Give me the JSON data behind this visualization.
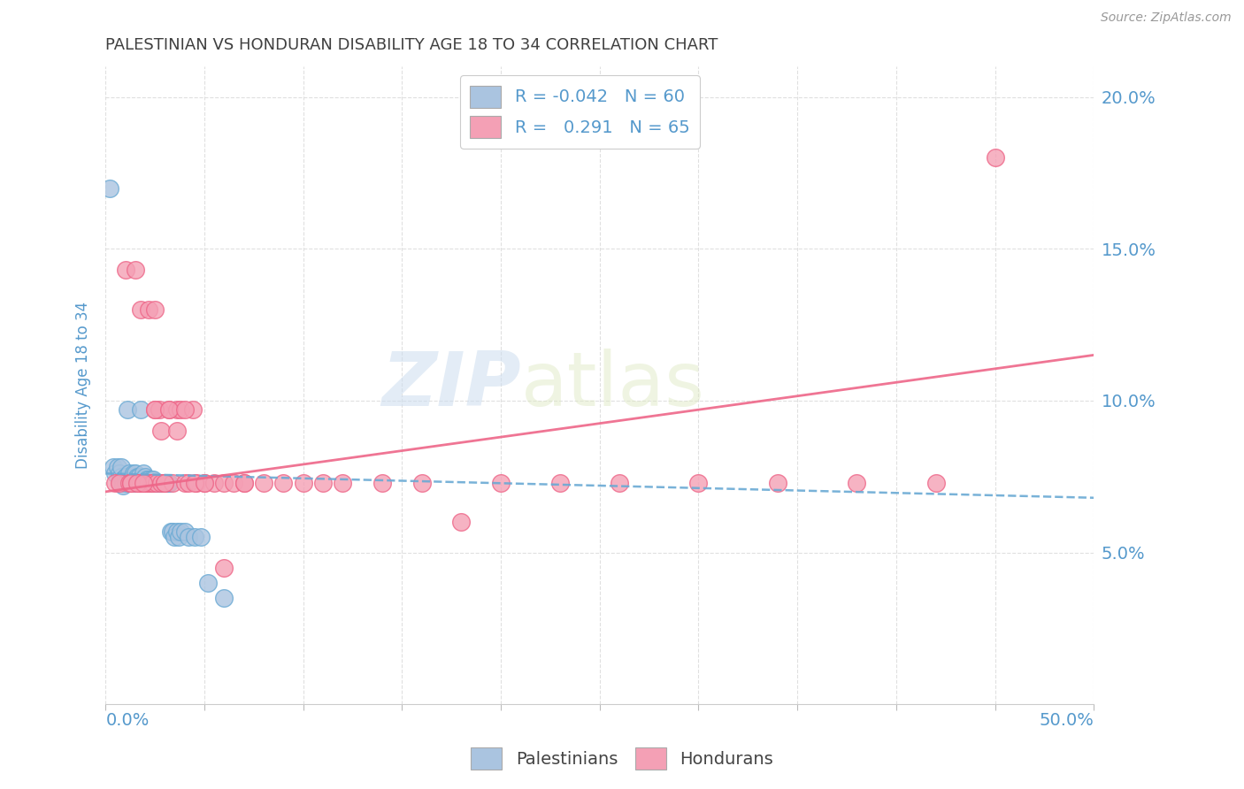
{
  "title": "PALESTINIAN VS HONDURAN DISABILITY AGE 18 TO 34 CORRELATION CHART",
  "source": "Source: ZipAtlas.com",
  "ylabel": "Disability Age 18 to 34",
  "ytick_labels": [
    "5.0%",
    "10.0%",
    "15.0%",
    "20.0%"
  ],
  "ytick_values": [
    0.05,
    0.1,
    0.15,
    0.2
  ],
  "xlim": [
    0.0,
    0.5
  ],
  "ylim": [
    0.0,
    0.21
  ],
  "legend_label1": "Palestinians",
  "legend_label2": "Hondurans",
  "color_blue": "#aac4e0",
  "color_pink": "#f4a0b5",
  "line_blue": "#6aaad4",
  "line_pink": "#ee6688",
  "background_color": "#ffffff",
  "grid_color": "#dddddd",
  "title_color": "#404040",
  "axis_label_color": "#5599cc",
  "watermark1": "ZIP",
  "watermark2": "atlas",
  "pal_x": [
    0.002,
    0.004,
    0.005,
    0.006,
    0.007,
    0.007,
    0.008,
    0.008,
    0.009,
    0.009,
    0.01,
    0.01,
    0.011,
    0.011,
    0.012,
    0.012,
    0.013,
    0.013,
    0.014,
    0.014,
    0.015,
    0.015,
    0.016,
    0.016,
    0.017,
    0.017,
    0.018,
    0.018,
    0.019,
    0.019,
    0.02,
    0.02,
    0.021,
    0.021,
    0.022,
    0.022,
    0.023,
    0.023,
    0.024,
    0.024,
    0.025,
    0.026,
    0.027,
    0.028,
    0.029,
    0.03,
    0.031,
    0.032,
    0.033,
    0.034,
    0.035,
    0.036,
    0.037,
    0.038,
    0.04,
    0.042,
    0.045,
    0.048,
    0.052,
    0.06
  ],
  "pal_y": [
    0.17,
    0.078,
    0.076,
    0.078,
    0.073,
    0.076,
    0.075,
    0.078,
    0.074,
    0.072,
    0.075,
    0.073,
    0.097,
    0.074,
    0.073,
    0.076,
    0.074,
    0.073,
    0.076,
    0.074,
    0.073,
    0.076,
    0.073,
    0.075,
    0.075,
    0.073,
    0.097,
    0.074,
    0.073,
    0.076,
    0.073,
    0.075,
    0.073,
    0.074,
    0.073,
    0.074,
    0.073,
    0.074,
    0.073,
    0.074,
    0.073,
    0.073,
    0.073,
    0.073,
    0.073,
    0.073,
    0.073,
    0.073,
    0.057,
    0.057,
    0.055,
    0.057,
    0.055,
    0.057,
    0.057,
    0.055,
    0.055,
    0.055,
    0.04,
    0.035
  ],
  "hon_x": [
    0.005,
    0.007,
    0.01,
    0.012,
    0.013,
    0.015,
    0.016,
    0.017,
    0.018,
    0.019,
    0.02,
    0.021,
    0.022,
    0.023,
    0.024,
    0.025,
    0.026,
    0.027,
    0.028,
    0.03,
    0.032,
    0.034,
    0.036,
    0.038,
    0.04,
    0.042,
    0.044,
    0.046,
    0.05,
    0.055,
    0.06,
    0.065,
    0.07,
    0.08,
    0.09,
    0.1,
    0.11,
    0.12,
    0.14,
    0.16,
    0.18,
    0.2,
    0.23,
    0.26,
    0.3,
    0.34,
    0.38,
    0.42,
    0.45,
    0.018,
    0.022,
    0.025,
    0.028,
    0.032,
    0.036,
    0.04,
    0.045,
    0.05,
    0.06,
    0.07,
    0.013,
    0.016,
    0.019,
    0.025,
    0.03
  ],
  "hon_y": [
    0.073,
    0.073,
    0.143,
    0.073,
    0.073,
    0.143,
    0.073,
    0.073,
    0.073,
    0.073,
    0.073,
    0.073,
    0.073,
    0.073,
    0.073,
    0.097,
    0.073,
    0.097,
    0.073,
    0.073,
    0.097,
    0.073,
    0.097,
    0.097,
    0.073,
    0.073,
    0.097,
    0.073,
    0.073,
    0.073,
    0.073,
    0.073,
    0.073,
    0.073,
    0.073,
    0.073,
    0.073,
    0.073,
    0.073,
    0.073,
    0.06,
    0.073,
    0.073,
    0.073,
    0.073,
    0.073,
    0.073,
    0.073,
    0.18,
    0.13,
    0.13,
    0.097,
    0.09,
    0.097,
    0.09,
    0.097,
    0.073,
    0.073,
    0.045,
    0.073,
    0.073,
    0.073,
    0.073,
    0.13,
    0.073
  ],
  "pal_line_x": [
    0.0,
    0.5
  ],
  "pal_line_y": [
    0.076,
    0.068
  ],
  "hon_line_x": [
    0.0,
    0.5
  ],
  "hon_line_y": [
    0.07,
    0.115
  ]
}
